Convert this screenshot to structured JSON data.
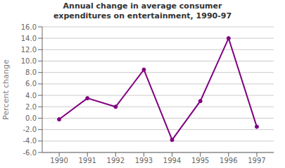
{
  "chart_data": {
    "type": "line",
    "title": "Annual change in average consumer\nexpenditures on entertainment, 1990-97",
    "y_label": "Percent change",
    "x": [
      1990,
      1991,
      1992,
      1993,
      1994,
      1995,
      1996,
      1997
    ],
    "values": [
      -0.2,
      3.5,
      2.0,
      8.5,
      -3.8,
      3.0,
      14.0,
      -1.5
    ],
    "color": "#800080",
    "marker": "o",
    "xlim": [
      1989.4,
      1997.6
    ],
    "xticks": [
      1990,
      1991,
      1992,
      1993,
      1994,
      1995,
      1996,
      1997
    ],
    "ylim": [
      -6.0,
      16.0
    ],
    "yticks": [
      {
        "value": -6.0,
        "label": "-6.0"
      },
      {
        "value": -4.0,
        "label": "-4.0"
      },
      {
        "value": -2.0,
        "label": "-2.0"
      },
      {
        "value": 0.0,
        "label": "0.0"
      },
      {
        "value": 2.0,
        "label": "2.0"
      },
      {
        "value": 4.0,
        "label": "4.0"
      },
      {
        "value": 6.0,
        "label": "6.0"
      },
      {
        "value": 8.0,
        "label": "8.0"
      },
      {
        "value": 10.0,
        "label": "10.0"
      },
      {
        "value": 12.0,
        "label": "12.0"
      },
      {
        "value": 14.0,
        "label": "14.0"
      },
      {
        "value": 16.0,
        "label": "16.0"
      }
    ],
    "grid": true
  }
}
